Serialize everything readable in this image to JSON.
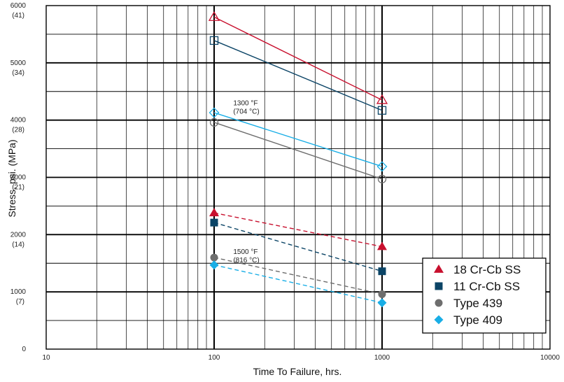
{
  "chart_data": {
    "type": "line",
    "xlabel": "Time To Failure, hrs.",
    "ylabel": "Stress, psi. (MPa)",
    "x_scale": "log",
    "xlim": [
      10,
      10000
    ],
    "ylim": [
      0,
      6000
    ],
    "grid": true,
    "x_ticks": [
      "10",
      "100",
      "1000",
      "10000"
    ],
    "y_ticks": [
      {
        "value": 0,
        "label": "0",
        "sub": ""
      },
      {
        "value": 1000,
        "label": "1000",
        "sub": "(7)"
      },
      {
        "value": 2000,
        "label": "2000",
        "sub": "(14)"
      },
      {
        "value": 3000,
        "label": "3000",
        "sub": "(21)"
      },
      {
        "value": 4000,
        "label": "4000",
        "sub": "(28)"
      },
      {
        "value": 5000,
        "label": "5000",
        "sub": "(34)"
      },
      {
        "value": 6000,
        "label": "6000",
        "sub": "(41)"
      }
    ],
    "annotations": [
      {
        "lines": [
          "1300 °F",
          "(704 °C)"
        ],
        "x": 130,
        "y": 4260
      },
      {
        "lines": [
          "1500 °F",
          "(816 °C)"
        ],
        "x": 130,
        "y": 1660
      }
    ],
    "legend_position": "bottom-right",
    "series": [
      {
        "name": "18 Cr-Cb SS",
        "color": "#c8102e",
        "marker": "triangle",
        "x": [
          100,
          1000
        ],
        "y_1300F": [
          5800,
          4350
        ],
        "y_1500F": [
          2380,
          1790
        ]
      },
      {
        "name": "11 Cr-Cb SS",
        "color": "#0b4466",
        "marker": "square",
        "x": [
          100,
          1000
        ],
        "y_1300F": [
          5390,
          4170
        ],
        "y_1500F": [
          2210,
          1360
        ]
      },
      {
        "name": "Type 439",
        "color": "#6e6e6e",
        "marker": "circle",
        "x": [
          100,
          1000
        ],
        "y_1300F": [
          3960,
          2970
        ],
        "y_1500F": [
          1600,
          960
        ]
      },
      {
        "name": "Type 409",
        "color": "#19aee6",
        "marker": "diamond",
        "x": [
          100,
          1000
        ],
        "y_1300F": [
          4130,
          3190
        ],
        "y_1500F": [
          1470,
          810
        ]
      }
    ]
  }
}
